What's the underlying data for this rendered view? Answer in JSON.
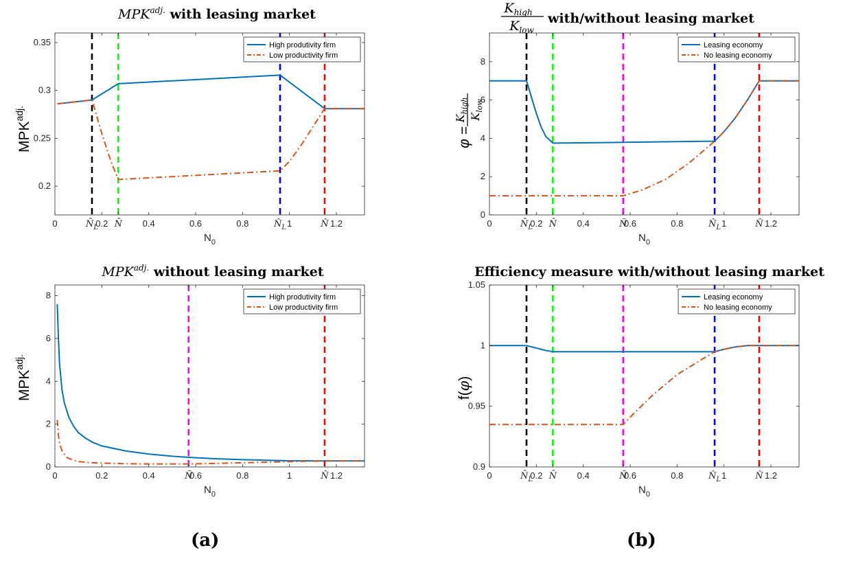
{
  "captions": {
    "left": "(a)",
    "right": "(b)"
  },
  "chart_data": [
    {
      "type": "line",
      "title": "MPK^adj. with leasing market",
      "xlabel": "N0",
      "ylabel": "MPK^adj.",
      "xlim": [
        0,
        1.32
      ],
      "ylim": [
        0.17,
        0.36
      ],
      "yticks": [
        0.2,
        0.25,
        0.3,
        0.35
      ],
      "ytick_labels": [
        "0.2",
        "0.25",
        "0.3",
        "0.35"
      ],
      "xticks": [
        0,
        0.158,
        0.2,
        0.27,
        0.4,
        0.6,
        0.8,
        0.96,
        1,
        1.15,
        1.2
      ],
      "xtick_labels": [
        "0",
        "N̄L",
        "0.2",
        "N̄",
        "0.4",
        "0.6",
        "0.8",
        "N̂L",
        "1",
        "N̂",
        "1.2"
      ],
      "vlines": [
        {
          "x": 0.158,
          "color": "#000000"
        },
        {
          "x": 0.27,
          "color": "#00ff00"
        },
        {
          "x": 0.96,
          "color": "#0000ff"
        },
        {
          "x": 1.15,
          "color": "#ff0000"
        }
      ],
      "legend": "top-right",
      "grid": false,
      "series": [
        {
          "name": "High produtivity firm",
          "style": "solid",
          "color": "#0072bd",
          "x": [
            0.01,
            0.158,
            0.27,
            0.96,
            1.15,
            1.32
          ],
          "y": [
            0.286,
            0.29,
            0.307,
            0.316,
            0.281,
            0.281
          ]
        },
        {
          "name": "Low productivity firm",
          "style": "dashdot",
          "color": "#d95319",
          "x": [
            0.01,
            0.158,
            0.2,
            0.24,
            0.27,
            0.96,
            1.0,
            1.05,
            1.1,
            1.15,
            1.32
          ],
          "y": [
            0.286,
            0.29,
            0.255,
            0.225,
            0.207,
            0.216,
            0.226,
            0.243,
            0.262,
            0.281,
            0.281
          ]
        }
      ]
    },
    {
      "type": "line",
      "title": "K_high/K_low with/without leasing market",
      "xlabel": "N0",
      "ylabel": "φ = K_high/K_low",
      "xlim": [
        0,
        1.32
      ],
      "ylim": [
        0,
        9.5
      ],
      "yticks": [
        0,
        2,
        4,
        6,
        8
      ],
      "ytick_labels": [
        "0",
        "2",
        "4",
        "6",
        "8"
      ],
      "xticks": [
        0,
        0.158,
        0.2,
        0.27,
        0.4,
        0.57,
        0.6,
        0.8,
        0.96,
        1,
        1.15,
        1.2
      ],
      "xtick_labels": [
        "0",
        "N̄L",
        "0.2",
        "N̄",
        "0.4",
        "Ñ",
        "0.6",
        "0.8",
        "N̂L",
        "1",
        "N̂",
        "1.2"
      ],
      "vlines": [
        {
          "x": 0.158,
          "color": "#000000"
        },
        {
          "x": 0.27,
          "color": "#00ff00"
        },
        {
          "x": 0.57,
          "color": "#ff00ff"
        },
        {
          "x": 0.96,
          "color": "#0000ff"
        },
        {
          "x": 1.15,
          "color": "#ff0000"
        }
      ],
      "legend": "top-right",
      "grid": false,
      "series": [
        {
          "name": "Leasing economy",
          "style": "solid",
          "color": "#0072bd",
          "x": [
            0,
            0.158,
            0.18,
            0.2,
            0.22,
            0.24,
            0.27,
            0.5,
            0.96,
            1.0,
            1.05,
            1.1,
            1.15,
            1.32
          ],
          "y": [
            7,
            7,
            6.1,
            5.3,
            4.6,
            4.1,
            3.75,
            3.78,
            3.85,
            4.35,
            5.1,
            6.0,
            7.0,
            7.0
          ]
        },
        {
          "name": "No leasing economy",
          "style": "dashdot",
          "color": "#d95319",
          "x": [
            0,
            0.57,
            0.65,
            0.75,
            0.85,
            0.96,
            1.0,
            1.05,
            1.1,
            1.15,
            1.32
          ],
          "y": [
            1,
            1,
            1.3,
            1.85,
            2.7,
            3.85,
            4.35,
            5.1,
            6.0,
            7.0,
            7.0
          ]
        }
      ]
    },
    {
      "type": "line",
      "title": "MPK^adj. without leasing market",
      "xlabel": "N0",
      "ylabel": "MPK^adj.",
      "xlim": [
        0,
        1.32
      ],
      "ylim": [
        0,
        8.5
      ],
      "yticks": [
        0,
        2,
        4,
        6,
        8
      ],
      "ytick_labels": [
        "0",
        "2",
        "4",
        "6",
        "8"
      ],
      "xticks": [
        0,
        0.2,
        0.4,
        0.57,
        0.6,
        0.8,
        1,
        1.15,
        1.2
      ],
      "xtick_labels": [
        "0",
        "0.2",
        "0.4",
        "Ñ",
        "0.6",
        "0.8",
        "1",
        "N̂",
        "1.2"
      ],
      "vlines": [
        {
          "x": 0.57,
          "color": "#ff00ff"
        },
        {
          "x": 1.15,
          "color": "#ff0000"
        }
      ],
      "legend": "top-right",
      "grid": false,
      "series": [
        {
          "name": "High produtivity firm",
          "style": "solid",
          "color": "#0072bd",
          "x": [
            0.01,
            0.015,
            0.02,
            0.03,
            0.04,
            0.06,
            0.08,
            0.1,
            0.13,
            0.16,
            0.2,
            0.3,
            0.4,
            0.5,
            0.6,
            0.7,
            0.8,
            0.9,
            1.0,
            1.15,
            1.32
          ],
          "y": [
            7.6,
            6.0,
            4.8,
            3.6,
            3.0,
            2.3,
            1.9,
            1.6,
            1.35,
            1.15,
            0.98,
            0.75,
            0.6,
            0.5,
            0.43,
            0.38,
            0.34,
            0.31,
            0.29,
            0.28,
            0.28
          ]
        },
        {
          "name": "Low productivity firm",
          "style": "dashdot",
          "color": "#d95319",
          "x": [
            0.01,
            0.015,
            0.02,
            0.03,
            0.05,
            0.08,
            0.1,
            0.15,
            0.2,
            0.3,
            0.4,
            0.57,
            0.7,
            0.85,
            1.0,
            1.15,
            1.32
          ],
          "y": [
            2.2,
            1.5,
            1.1,
            0.75,
            0.45,
            0.3,
            0.25,
            0.2,
            0.18,
            0.15,
            0.14,
            0.14,
            0.17,
            0.21,
            0.25,
            0.28,
            0.28
          ]
        }
      ]
    },
    {
      "type": "line",
      "title": "Efficiency measure with/without leasing market",
      "xlabel": "N0",
      "ylabel": "f(φ)",
      "xlim": [
        0,
        1.32
      ],
      "ylim": [
        0.9,
        1.05
      ],
      "yticks": [
        0.9,
        0.95,
        1,
        1.05
      ],
      "ytick_labels": [
        "0.9",
        "0.95",
        "1",
        "1.05"
      ],
      "xticks": [
        0,
        0.158,
        0.2,
        0.27,
        0.4,
        0.57,
        0.6,
        0.8,
        0.96,
        1,
        1.15,
        1.2
      ],
      "xtick_labels": [
        "0",
        "N̄L",
        "0.2",
        "N̄",
        "0.4",
        "Ñ",
        "0.6",
        "0.8",
        "N̂L",
        "1",
        "N̂",
        "1.2"
      ],
      "vlines": [
        {
          "x": 0.158,
          "color": "#000000"
        },
        {
          "x": 0.27,
          "color": "#00ff00"
        },
        {
          "x": 0.57,
          "color": "#ff00ff"
        },
        {
          "x": 0.96,
          "color": "#0000ff"
        },
        {
          "x": 1.15,
          "color": "#ff0000"
        }
      ],
      "legend": "top-right",
      "grid": false,
      "series": [
        {
          "name": "Leasing economy",
          "style": "solid",
          "color": "#0072bd",
          "x": [
            0,
            0.158,
            0.2,
            0.24,
            0.27,
            0.6,
            0.96,
            1.0,
            1.05,
            1.1,
            1.15,
            1.32
          ],
          "y": [
            1.0,
            1.0,
            0.998,
            0.996,
            0.995,
            0.995,
            0.995,
            0.997,
            0.999,
            1.0,
            1.0,
            1.0
          ]
        },
        {
          "name": "No leasing economy",
          "style": "dashdot",
          "color": "#d95319",
          "x": [
            0,
            0.57,
            0.62,
            0.7,
            0.8,
            0.9,
            0.96,
            1.0,
            1.05,
            1.1,
            1.15,
            1.32
          ],
          "y": [
            0.935,
            0.935,
            0.945,
            0.96,
            0.976,
            0.988,
            0.995,
            0.997,
            0.999,
            1.0,
            1.0,
            1.0
          ]
        }
      ]
    }
  ]
}
